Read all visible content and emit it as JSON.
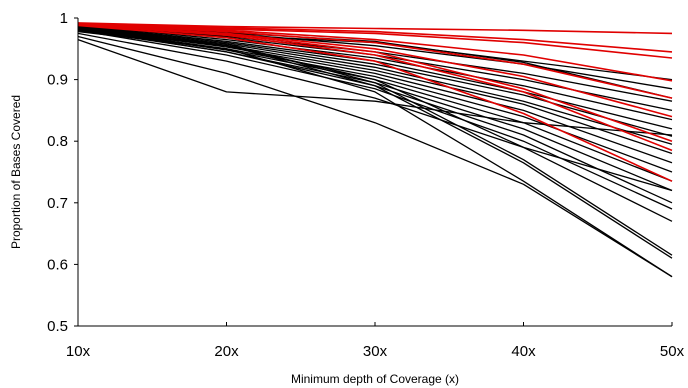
{
  "chart_data": {
    "type": "line",
    "xlabel": "Minimum depth of Coverage (x)",
    "ylabel": "Proportion of Bases Covered",
    "categories": [
      "10x",
      "20x",
      "30x",
      "40x",
      "50x"
    ],
    "ylim": [
      0.5,
      1
    ],
    "yticks": [
      "0.5",
      "0.6",
      "0.7",
      "0.8",
      "0.9",
      "1"
    ],
    "grid": false,
    "legend": "none",
    "colors": {
      "black_series": "#000000",
      "red_series": "#e00000"
    },
    "series": [
      {
        "color": "black",
        "values": [
          0.99,
          0.975,
          0.955,
          0.925,
          0.885
        ]
      },
      {
        "color": "black",
        "values": [
          0.99,
          0.97,
          0.945,
          0.91,
          0.865
        ]
      },
      {
        "color": "black",
        "values": [
          0.988,
          0.968,
          0.94,
          0.9,
          0.85
        ]
      },
      {
        "color": "black",
        "values": [
          0.988,
          0.965,
          0.935,
          0.89,
          0.835
        ]
      },
      {
        "color": "black",
        "values": [
          0.987,
          0.962,
          0.93,
          0.88,
          0.82
        ]
      },
      {
        "color": "black",
        "values": [
          0.986,
          0.96,
          0.925,
          0.875,
          0.808
        ]
      },
      {
        "color": "black",
        "values": [
          0.985,
          0.958,
          0.92,
          0.865,
          0.795
        ]
      },
      {
        "color": "black",
        "values": [
          0.985,
          0.955,
          0.915,
          0.86,
          0.78
        ]
      },
      {
        "color": "black",
        "values": [
          0.984,
          0.953,
          0.91,
          0.85,
          0.765
        ]
      },
      {
        "color": "black",
        "values": [
          0.983,
          0.95,
          0.905,
          0.84,
          0.75
        ]
      },
      {
        "color": "black",
        "values": [
          0.982,
          0.948,
          0.9,
          0.83,
          0.735
        ]
      },
      {
        "color": "black",
        "values": [
          0.982,
          0.945,
          0.895,
          0.82,
          0.72
        ]
      },
      {
        "color": "black",
        "values": [
          0.981,
          0.945,
          0.89,
          0.81,
          0.7
        ]
      },
      {
        "color": "black",
        "values": [
          0.98,
          0.94,
          0.885,
          0.8,
          0.69
        ]
      },
      {
        "color": "black",
        "values": [
          0.98,
          0.955,
          0.9,
          0.79,
          0.67
        ]
      },
      {
        "color": "black",
        "values": [
          0.98,
          0.958,
          0.895,
          0.77,
          0.615
        ]
      },
      {
        "color": "black",
        "values": [
          0.98,
          0.956,
          0.89,
          0.765,
          0.61
        ]
      },
      {
        "color": "black",
        "values": [
          0.978,
          0.95,
          0.88,
          0.735,
          0.58
        ]
      },
      {
        "color": "black",
        "values": [
          0.975,
          0.93,
          0.87,
          0.79,
          0.72
        ]
      },
      {
        "color": "black",
        "values": [
          0.97,
          0.91,
          0.83,
          0.73,
          0.58
        ]
      },
      {
        "color": "black",
        "values": [
          0.965,
          0.88,
          0.865,
          0.83,
          0.81
        ]
      },
      {
        "color": "black",
        "values": [
          0.988,
          0.972,
          0.96,
          0.93,
          0.9
        ]
      },
      {
        "color": "black",
        "values": [
          0.99,
          0.976,
          0.962,
          0.928,
          0.87
        ]
      },
      {
        "color": "red",
        "values": [
          0.992,
          0.986,
          0.983,
          0.98,
          0.975
        ]
      },
      {
        "color": "red",
        "values": [
          0.991,
          0.984,
          0.978,
          0.965,
          0.945
        ]
      },
      {
        "color": "red",
        "values": [
          0.991,
          0.982,
          0.975,
          0.96,
          0.935
        ]
      },
      {
        "color": "red",
        "values": [
          0.99,
          0.98,
          0.965,
          0.94,
          0.898
        ]
      },
      {
        "color": "red",
        "values": [
          0.99,
          0.978,
          0.96,
          0.925,
          0.87
        ]
      },
      {
        "color": "red",
        "values": [
          0.989,
          0.975,
          0.95,
          0.905,
          0.84
        ]
      },
      {
        "color": "red",
        "values": [
          0.989,
          0.974,
          0.945,
          0.885,
          0.8
        ]
      },
      {
        "color": "red",
        "values": [
          0.989,
          0.972,
          0.94,
          0.88,
          0.785
        ]
      },
      {
        "color": "red",
        "values": [
          0.988,
          0.968,
          0.93,
          0.845,
          0.735
        ]
      }
    ]
  }
}
